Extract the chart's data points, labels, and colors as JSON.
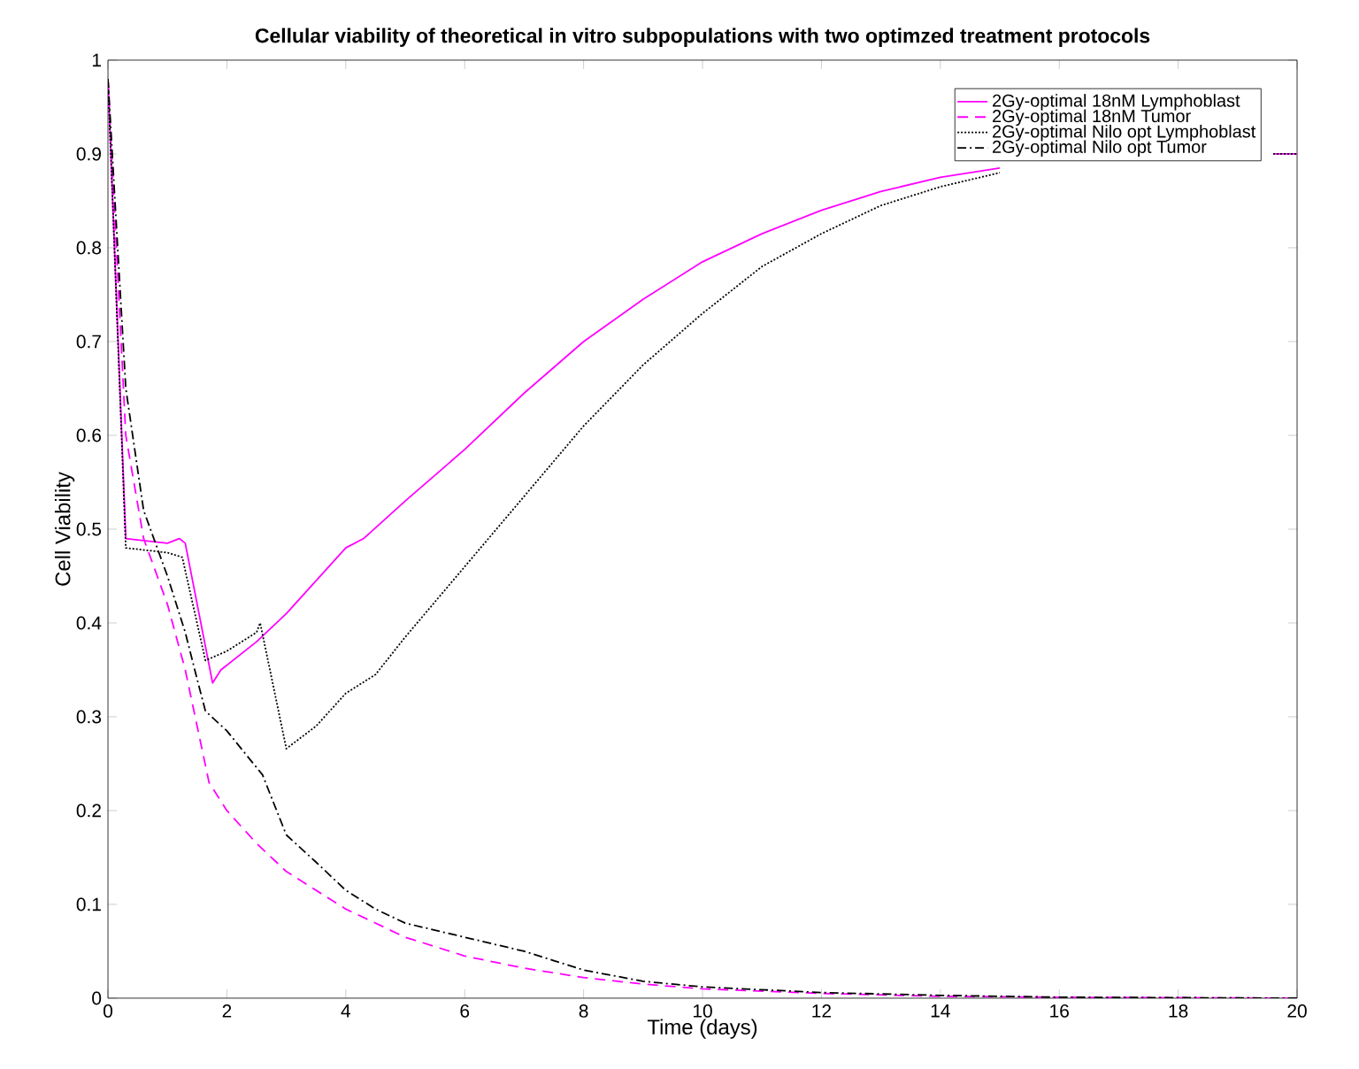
{
  "chart_data": {
    "type": "line",
    "title": "Cellular viability of theoretical in vitro subpopulations with two optimzed treatment protocols",
    "xlabel": "Time (days)",
    "ylabel": "Cell Viability",
    "xlim": [
      0,
      20
    ],
    "ylim": [
      0,
      1
    ],
    "xticks": [
      0,
      2,
      4,
      6,
      8,
      10,
      12,
      14,
      16,
      18,
      20
    ],
    "yticks": [
      0,
      0.1,
      0.2,
      0.3,
      0.4,
      0.5,
      0.6,
      0.7,
      0.8,
      0.9,
      1
    ],
    "grid": false,
    "legend": "top right",
    "marker": "none",
    "series": [
      {
        "name": "2Gy-optimal 18nM Lymphoblast",
        "color": "#ff00ff",
        "line_style": "solid",
        "x": [
          0,
          0.3,
          1.0,
          1.2,
          1.3,
          1.76,
          1.9,
          2.5,
          3,
          3.5,
          4,
          4.3,
          5,
          6,
          7,
          8,
          9,
          10,
          11,
          12,
          13,
          14,
          15,
          16,
          17,
          18,
          19,
          19.6,
          20
        ],
        "values": [
          0.98,
          0.49,
          0.485,
          0.49,
          0.485,
          0.336,
          0.35,
          0.38,
          0.41,
          0.445,
          0.48,
          0.49,
          0.53,
          0.585,
          0.645,
          0.7,
          0.745,
          0.785,
          0.815,
          0.84,
          0.86,
          0.875,
          0.885,
          null,
          null,
          null,
          null,
          0.9,
          0.9
        ]
      },
      {
        "name": "2Gy-optimal 18nM Tumor",
        "color": "#ff00ff",
        "line_style": "dashed",
        "x": [
          0,
          0.3,
          0.6,
          1,
          1.3,
          1.7,
          2,
          2.5,
          3,
          4,
          5,
          6,
          7,
          8,
          9,
          10,
          12,
          14,
          16,
          20
        ],
        "values": [
          0.98,
          0.6,
          0.49,
          0.42,
          0.35,
          0.23,
          0.2,
          0.165,
          0.135,
          0.095,
          0.065,
          0.045,
          0.032,
          0.022,
          0.015,
          0.01,
          0.005,
          0.002,
          0.001,
          0
        ]
      },
      {
        "name": "2Gy-optimal Nilo opt Lymphoblast",
        "color": "#000000",
        "line_style": "dotted",
        "x": [
          0,
          0.3,
          1,
          1.25,
          1.64,
          2,
          2.5,
          2.56,
          3,
          3.5,
          4,
          4.5,
          5,
          6,
          7,
          8,
          9,
          10,
          11,
          12,
          13,
          14,
          15,
          16,
          18,
          19.6,
          20
        ],
        "values": [
          0.98,
          0.48,
          0.475,
          0.47,
          0.36,
          0.37,
          0.39,
          0.4,
          0.266,
          0.29,
          0.325,
          0.345,
          0.385,
          0.46,
          0.535,
          0.61,
          0.675,
          0.73,
          0.78,
          0.815,
          0.845,
          0.865,
          0.88,
          null,
          null,
          0.9,
          0.9
        ]
      },
      {
        "name": "2Gy-optimal Nilo opt Tumor",
        "color": "#000000",
        "line_style": "dashdot",
        "x": [
          0,
          0.3,
          0.6,
          1,
          1.3,
          1.5,
          1.64,
          2,
          2.6,
          3,
          3.5,
          4,
          4.5,
          5,
          6,
          7,
          7.5,
          8,
          9,
          10,
          12,
          14,
          16,
          20
        ],
        "values": [
          0.98,
          0.65,
          0.52,
          0.45,
          0.39,
          0.34,
          0.306,
          0.285,
          0.238,
          0.174,
          0.145,
          0.115,
          0.095,
          0.08,
          0.065,
          0.05,
          0.04,
          0.03,
          0.018,
          0.012,
          0.006,
          0.003,
          0.001,
          0
        ]
      }
    ]
  }
}
